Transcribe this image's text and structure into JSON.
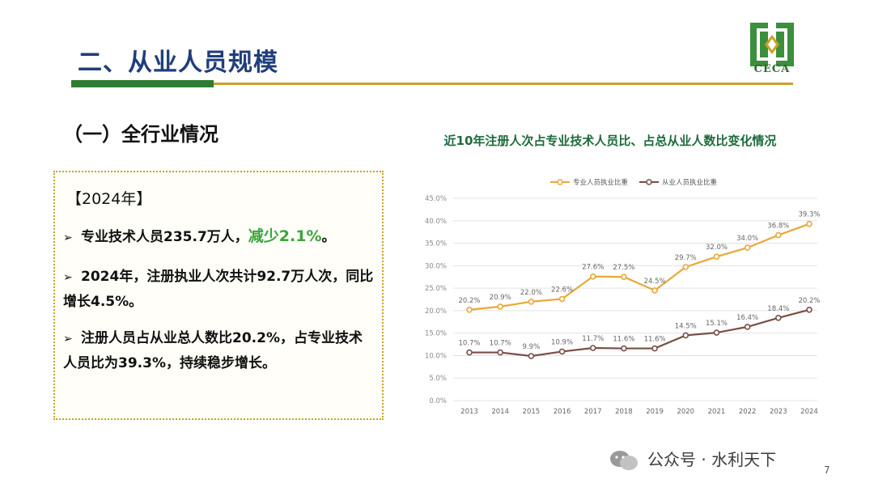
{
  "slide": {
    "title": "二、从业人员规模",
    "section": "（一）全行业情况",
    "logo_text": "CECA",
    "page_number": "7"
  },
  "info": {
    "year": "【2024年】",
    "bullet1": {
      "text": "专业技术人员235.7万人，",
      "highlight": "减少2.1%",
      "end": "。"
    },
    "bullet2": "2024年，注册执业人次共计92.7万人次，同比增长4.5%。",
    "bullet3": "注册人员占从业总人数比20.2%，占专业技术人员比为39.3%，持续稳步增长。"
  },
  "watermark": "公众号 · 水利天下",
  "colors": {
    "gold": "#E8A838",
    "brown": "#7A4E46",
    "title_blue": "#1F3E7A",
    "green": "#2E7D32"
  },
  "chart_data": {
    "type": "line",
    "title": "近10年注册人次占专业技术人员比、占总从业人数比变化情况",
    "x": [
      "2013",
      "2014",
      "2015",
      "2016",
      "2017",
      "2018",
      "2019",
      "2020",
      "2021",
      "2022",
      "2023",
      "2024"
    ],
    "series": [
      {
        "name": "专业人员执业比重",
        "color": "#E8A838",
        "values": [
          20.2,
          20.9,
          22.0,
          22.6,
          27.6,
          27.5,
          24.5,
          29.7,
          32.0,
          34.0,
          36.8,
          39.3
        ],
        "labels": [
          "20.2%",
          "20.9%",
          "22.0%",
          "22.6%",
          "27.6%",
          "27.5%",
          "24.5%",
          "29.7%",
          "32.0%",
          "34.0%",
          "36.8%",
          "39.3%"
        ]
      },
      {
        "name": "从业人员执业比重",
        "color": "#7A4E46",
        "values": [
          10.7,
          10.7,
          9.9,
          10.9,
          11.7,
          11.6,
          11.6,
          14.5,
          15.1,
          16.4,
          18.4,
          20.2
        ],
        "labels": [
          "10.7%",
          "10.7%",
          "9.9%",
          "10.9%",
          "11.7%",
          "11.6%",
          "11.6%",
          "14.5%",
          "15.1%",
          "16.4%",
          "18.4%",
          "20.2%"
        ]
      }
    ],
    "yticks": [
      "0.0%",
      "5.0%",
      "10.0%",
      "15.0%",
      "20.0%",
      "25.0%",
      "30.0%",
      "35.0%",
      "40.0%",
      "45.0%"
    ],
    "ylim": [
      0,
      45
    ],
    "grid": true,
    "legend": "top-center"
  }
}
